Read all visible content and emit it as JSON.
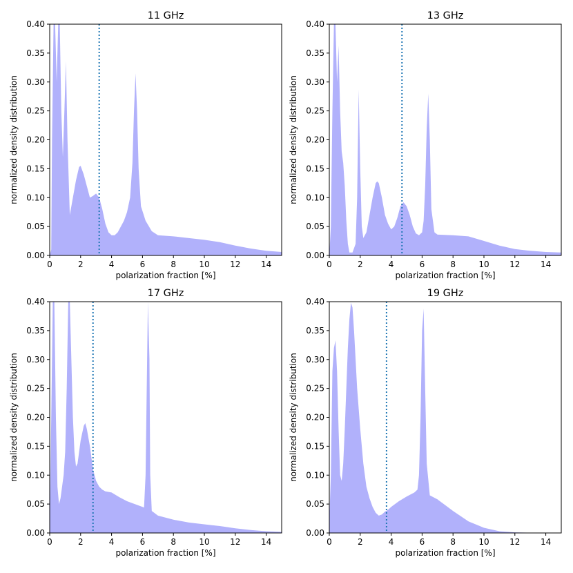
{
  "chart_data": [
    {
      "type": "area",
      "title": "11 GHz",
      "xlabel": "polarization fraction [%]",
      "ylabel": "normalized density distribution",
      "xlim": [
        0,
        15
      ],
      "ylim": [
        0,
        0.4
      ],
      "xticks": [
        "0",
        "2",
        "4",
        "6",
        "8",
        "10",
        "12",
        "14"
      ],
      "yticks": [
        "0.00",
        "0.05",
        "0.10",
        "0.15",
        "0.20",
        "0.25",
        "0.30",
        "0.35",
        "0.40"
      ],
      "vline_x": 3.2,
      "x": [
        0,
        0.1,
        0.15,
        0.25,
        0.35,
        0.45,
        0.55,
        0.65,
        0.75,
        0.85,
        0.95,
        1.05,
        1.15,
        1.3,
        1.5,
        1.7,
        1.9,
        2.0,
        2.2,
        2.4,
        2.6,
        2.8,
        3.0,
        3.2,
        3.4,
        3.6,
        3.8,
        4.0,
        4.2,
        4.4,
        4.6,
        4.8,
        5.0,
        5.2,
        5.35,
        5.45,
        5.55,
        5.65,
        5.75,
        5.9,
        6.2,
        6.6,
        7.0,
        8,
        9,
        10,
        11,
        12,
        13,
        14,
        15
      ],
      "y": [
        0,
        0.01,
        0.2,
        0.4,
        0.4,
        0.3,
        0.4,
        0.4,
        0.25,
        0.17,
        0.25,
        0.336,
        0.2,
        0.07,
        0.1,
        0.13,
        0.153,
        0.155,
        0.14,
        0.12,
        0.1,
        0.103,
        0.107,
        0.1,
        0.08,
        0.055,
        0.04,
        0.035,
        0.035,
        0.04,
        0.05,
        0.06,
        0.075,
        0.1,
        0.16,
        0.25,
        0.315,
        0.25,
        0.15,
        0.085,
        0.06,
        0.042,
        0.035,
        0.033,
        0.03,
        0.027,
        0.023,
        0.017,
        0.012,
        0.008,
        0.006
      ]
    },
    {
      "type": "area",
      "title": "13 GHz",
      "xlabel": "polarization fraction [%]",
      "ylabel": "normalized density distribution",
      "xlim": [
        0,
        15
      ],
      "ylim": [
        0,
        0.4
      ],
      "xticks": [
        "0",
        "2",
        "4",
        "6",
        "8",
        "10",
        "12",
        "14"
      ],
      "yticks": [
        "0.00",
        "0.05",
        "0.10",
        "0.15",
        "0.20",
        "0.25",
        "0.30",
        "0.35",
        "0.40"
      ],
      "vline_x": 4.7,
      "x": [
        0,
        0.1,
        0.2,
        0.3,
        0.4,
        0.5,
        0.6,
        0.7,
        0.8,
        0.9,
        1.0,
        1.1,
        1.2,
        1.3,
        1.5,
        1.7,
        1.8,
        1.9,
        2.0,
        2.1,
        2.2,
        2.4,
        2.6,
        2.8,
        3.0,
        3.1,
        3.2,
        3.4,
        3.6,
        3.8,
        4.0,
        4.2,
        4.4,
        4.6,
        4.8,
        5.0,
        5.2,
        5.4,
        5.6,
        5.8,
        6.0,
        6.1,
        6.2,
        6.3,
        6.4,
        6.5,
        6.6,
        6.8,
        7.0,
        8,
        9,
        10,
        11,
        12,
        13,
        14,
        15
      ],
      "y": [
        0,
        0.05,
        0.25,
        0.4,
        0.4,
        0.3,
        0.363,
        0.25,
        0.18,
        0.16,
        0.12,
        0.06,
        0.02,
        0.005,
        0.005,
        0.02,
        0.1,
        0.287,
        0.15,
        0.05,
        0.03,
        0.04,
        0.07,
        0.1,
        0.125,
        0.128,
        0.125,
        0.1,
        0.07,
        0.055,
        0.045,
        0.05,
        0.065,
        0.085,
        0.092,
        0.085,
        0.07,
        0.05,
        0.038,
        0.035,
        0.04,
        0.06,
        0.12,
        0.22,
        0.28,
        0.2,
        0.08,
        0.04,
        0.036,
        0.035,
        0.033,
        0.025,
        0.017,
        0.011,
        0.008,
        0.006,
        0.005
      ]
    },
    {
      "type": "area",
      "title": "17 GHz",
      "xlabel": "polarization fraction [%]",
      "ylabel": "normalized density distribution",
      "xlim": [
        0,
        15
      ],
      "ylim": [
        0,
        0.4
      ],
      "xticks": [
        "0",
        "2",
        "4",
        "6",
        "8",
        "10",
        "12",
        "14"
      ],
      "yticks": [
        "0.00",
        "0.05",
        "0.10",
        "0.15",
        "0.20",
        "0.25",
        "0.30",
        "0.35",
        "0.40"
      ],
      "vline_x": 2.8,
      "x": [
        0,
        0.1,
        0.2,
        0.3,
        0.4,
        0.5,
        0.6,
        0.7,
        0.8,
        0.9,
        1.0,
        1.1,
        1.2,
        1.3,
        1.4,
        1.5,
        1.6,
        1.7,
        1.8,
        1.9,
        2.0,
        2.2,
        2.3,
        2.4,
        2.6,
        2.8,
        3.0,
        3.2,
        3.4,
        3.6,
        4.0,
        4.5,
        5.0,
        5.5,
        6.0,
        6.1,
        6.2,
        6.3,
        6.35,
        6.45,
        6.5,
        6.6,
        7,
        8,
        9,
        10,
        11,
        12,
        13,
        14,
        15
      ],
      "y": [
        0.02,
        0.2,
        0.4,
        0.4,
        0.2,
        0.08,
        0.05,
        0.06,
        0.08,
        0.1,
        0.14,
        0.25,
        0.4,
        0.4,
        0.3,
        0.2,
        0.14,
        0.115,
        0.12,
        0.14,
        0.16,
        0.185,
        0.19,
        0.18,
        0.15,
        0.11,
        0.09,
        0.08,
        0.075,
        0.072,
        0.07,
        0.062,
        0.055,
        0.05,
        0.045,
        0.044,
        0.1,
        0.3,
        0.4,
        0.3,
        0.1,
        0.038,
        0.03,
        0.023,
        0.018,
        0.015,
        0.012,
        0.008,
        0.005,
        0.003,
        0.002
      ]
    },
    {
      "type": "area",
      "title": "19 GHz",
      "xlabel": "polarization fraction [%]",
      "ylabel": "normalized density distribution",
      "xlim": [
        0,
        15
      ],
      "ylim": [
        0,
        0.4
      ],
      "xticks": [
        "0",
        "2",
        "4",
        "6",
        "8",
        "10",
        "12",
        "14"
      ],
      "yticks": [
        "0.00",
        "0.05",
        "0.10",
        "0.15",
        "0.20",
        "0.25",
        "0.30",
        "0.35",
        "0.40"
      ],
      "vline_x": 3.7,
      "x": [
        0,
        0.1,
        0.2,
        0.3,
        0.4,
        0.5,
        0.6,
        0.7,
        0.8,
        0.9,
        1.0,
        1.1,
        1.2,
        1.3,
        1.4,
        1.5,
        1.6,
        1.8,
        2.0,
        2.2,
        2.4,
        2.6,
        2.8,
        3.0,
        3.2,
        3.4,
        3.6,
        3.8,
        4.0,
        4.5,
        5.0,
        5.5,
        5.7,
        5.8,
        5.9,
        6.0,
        6.1,
        6.2,
        6.3,
        6.5,
        7.0,
        7.5,
        8,
        9,
        10,
        11,
        12,
        13,
        14,
        15
      ],
      "y": [
        0.02,
        0.1,
        0.28,
        0.32,
        0.333,
        0.28,
        0.18,
        0.1,
        0.09,
        0.12,
        0.18,
        0.25,
        0.32,
        0.37,
        0.398,
        0.39,
        0.35,
        0.25,
        0.18,
        0.12,
        0.08,
        0.06,
        0.045,
        0.035,
        0.03,
        0.032,
        0.037,
        0.04,
        0.045,
        0.055,
        0.063,
        0.07,
        0.075,
        0.1,
        0.2,
        0.35,
        0.388,
        0.25,
        0.12,
        0.065,
        0.058,
        0.048,
        0.038,
        0.02,
        0.009,
        0.003,
        0.001,
        0.0005,
        0.0002,
        0.0001
      ]
    }
  ],
  "colors": {
    "fill": "#b1b1fb",
    "vline": "#1f77b4",
    "axes": "#000000"
  }
}
